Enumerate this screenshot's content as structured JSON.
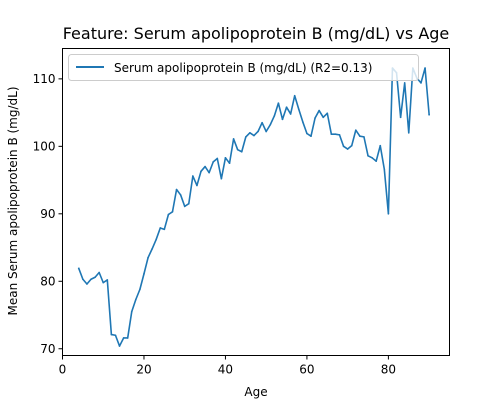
{
  "chart_data": {
    "type": "line",
    "title": "Feature: Serum apolipoprotein B (mg/dL) vs Age",
    "xlabel": "Age",
    "ylabel": "Mean Serum apolipoprotein B (mg/dL)",
    "xlim": [
      0,
      95
    ],
    "ylim": [
      69,
      114.5
    ],
    "xticks": [
      0,
      20,
      40,
      60,
      80
    ],
    "yticks": [
      70,
      80,
      90,
      100,
      110
    ],
    "grid": false,
    "legend_position": "top-left",
    "series": [
      {
        "name": "Serum apolipoprotein B (mg/dL) (R2=0.13)",
        "color": "#1f77b4",
        "x": [
          4,
          5,
          6,
          7,
          8,
          9,
          10,
          11,
          12,
          13,
          14,
          15,
          16,
          17,
          18,
          19,
          20,
          21,
          22,
          23,
          24,
          25,
          26,
          27,
          28,
          29,
          30,
          31,
          32,
          33,
          34,
          35,
          36,
          37,
          38,
          39,
          40,
          41,
          42,
          43,
          44,
          45,
          46,
          47,
          48,
          49,
          50,
          51,
          52,
          53,
          54,
          55,
          56,
          57,
          58,
          59,
          60,
          61,
          62,
          63,
          64,
          65,
          66,
          67,
          68,
          69,
          70,
          71,
          72,
          73,
          74,
          75,
          76,
          77,
          78,
          79,
          80,
          81,
          82,
          83,
          84,
          85,
          86,
          87,
          88,
          89,
          90
        ],
        "values": [
          81.9,
          80.3,
          79.6,
          80.3,
          80.6,
          81.3,
          79.8,
          80.2,
          72.1,
          72.0,
          70.4,
          71.6,
          71.6,
          75.5,
          77.3,
          78.8,
          81.1,
          83.5,
          84.8,
          86.2,
          87.9,
          87.7,
          89.9,
          90.3,
          93.6,
          92.8,
          91.1,
          91.5,
          95.6,
          94.2,
          96.3,
          97.0,
          96.1,
          97.7,
          98.2,
          95.2,
          98.3,
          97.5,
          101.1,
          99.5,
          99.2,
          101.4,
          102.0,
          101.6,
          102.2,
          103.5,
          102.2,
          103.2,
          104.5,
          106.4,
          104.0,
          105.8,
          104.8,
          107.5,
          105.5,
          103.6,
          101.9,
          101.5,
          104.2,
          105.3,
          104.3,
          104.9,
          101.8,
          101.8,
          101.7,
          100.0,
          99.6,
          100.1,
          102.4,
          101.5,
          101.4,
          98.6,
          98.3,
          97.8,
          100.1,
          96.6,
          90.0,
          111.6,
          110.9,
          104.3,
          109.4,
          102.0,
          111.6,
          110.1,
          109.4,
          111.6,
          104.7
        ]
      }
    ]
  }
}
